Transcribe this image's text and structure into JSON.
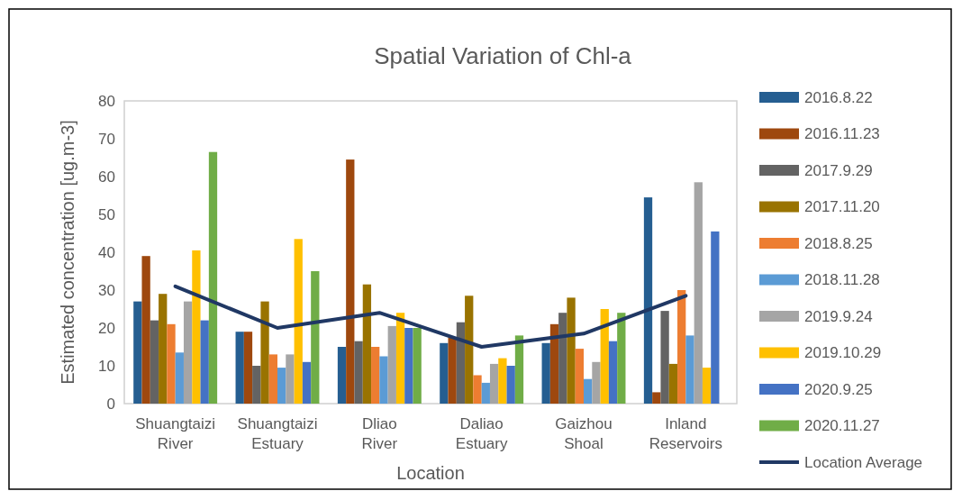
{
  "chart_data": {
    "type": "bar",
    "title": "Spatial Variation of Chl-a",
    "xlabel": "Location",
    "ylabel": "Estimated concentration [ug.m-3]",
    "categories": [
      "Shuangtaizi River",
      "Shuangtaizi Estuary",
      "Dliao River",
      "Daliao Estuary",
      "Gaizhou Shoal",
      "Inland Reservoirs"
    ],
    "ylim": [
      0,
      80
    ],
    "yticks": [
      0,
      10,
      20,
      30,
      40,
      50,
      60,
      70,
      80
    ],
    "grid": false,
    "legend": "right",
    "marker": "none",
    "series": [
      {
        "name": "2016.8.22",
        "color": "#255e91",
        "values": [
          27,
          19,
          15,
          16,
          16,
          54.5
        ]
      },
      {
        "name": "2016.11.23",
        "color": "#9e480e",
        "values": [
          39,
          19,
          64.5,
          17.5,
          21,
          3
        ]
      },
      {
        "name": "2017.9.29",
        "color": "#636363",
        "values": [
          22,
          10,
          16.5,
          21.5,
          24,
          24.5
        ]
      },
      {
        "name": "2017.11.20",
        "color": "#997300",
        "values": [
          29,
          27,
          31.5,
          28.5,
          28,
          10.5
        ]
      },
      {
        "name": "2018.8.25",
        "color": "#ed7d31",
        "values": [
          21,
          13,
          15,
          7.5,
          14.5,
          30
        ]
      },
      {
        "name": "2018.11.28",
        "color": "#5b9bd5",
        "values": [
          13.5,
          9.5,
          12.5,
          5.5,
          6.5,
          18
        ]
      },
      {
        "name": "2019.9.24",
        "color": "#a5a5a5",
        "values": [
          27,
          13,
          20.5,
          10.5,
          11,
          58.5
        ]
      },
      {
        "name": "2019.10.29",
        "color": "#ffc000",
        "values": [
          40.5,
          43.5,
          24,
          12,
          25,
          9.5
        ]
      },
      {
        "name": "2020.9.25",
        "color": "#4472c4",
        "values": [
          22,
          11,
          20,
          10,
          16.5,
          45.5
        ]
      },
      {
        "name": "2020.11.27",
        "color": "#70ad47",
        "values": [
          66.5,
          35,
          20,
          18,
          24,
          null
        ]
      },
      {
        "name": "Location Average",
        "type": "line",
        "color": "#203864",
        "values": [
          31,
          20,
          24,
          15,
          18.5,
          28.5
        ]
      }
    ]
  }
}
